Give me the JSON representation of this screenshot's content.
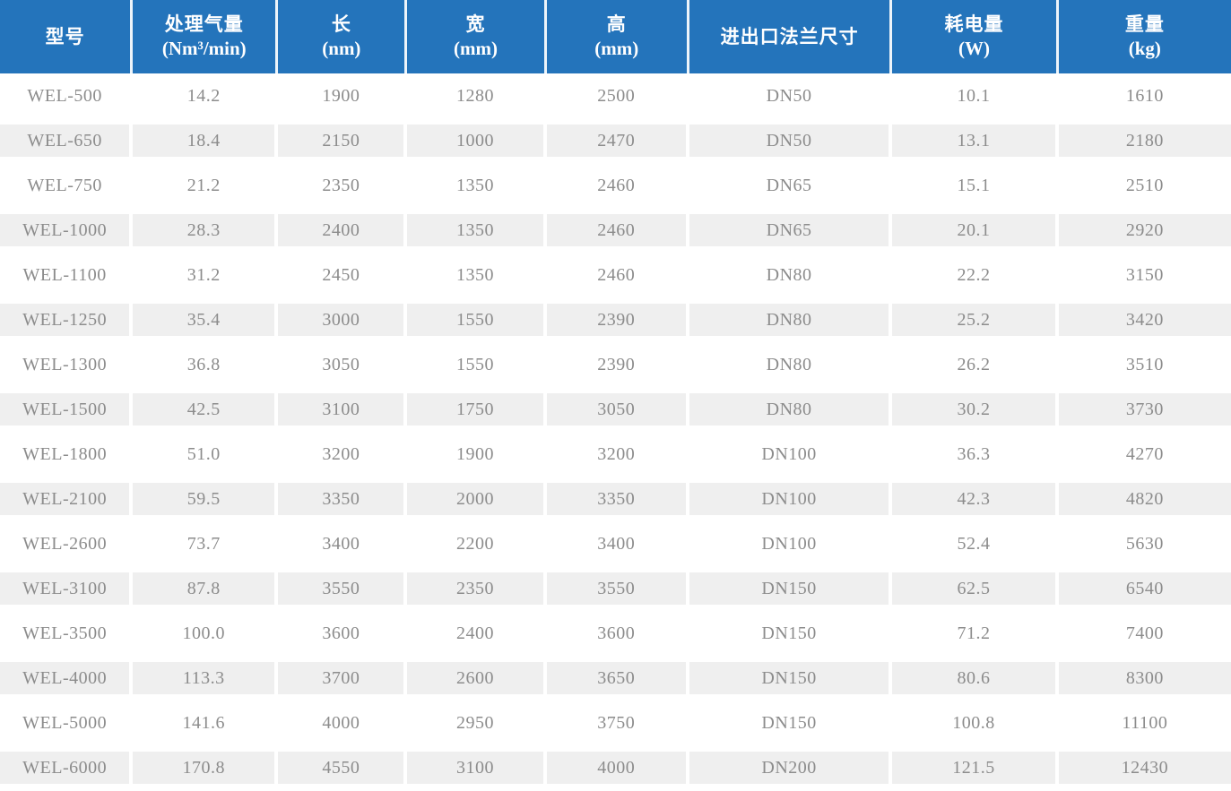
{
  "table": {
    "colors": {
      "header_bg": "#2474BB",
      "header_text": "#FFFFFF",
      "row_bg": "#FFFFFF",
      "row_alt_bg": "#EFEFEF",
      "body_text": "#8C8C8C"
    },
    "columns": [
      {
        "line1": "型号",
        "line2": ""
      },
      {
        "line1": "处理气量",
        "line2": "(Nm³/min)"
      },
      {
        "line1": "长",
        "line2": "(nm)"
      },
      {
        "line1": "宽",
        "line2": "(mm)"
      },
      {
        "line1": "高",
        "line2": "(mm)"
      },
      {
        "line1": "进出口法兰尺寸",
        "line2": ""
      },
      {
        "line1": "耗电量",
        "line2": "(W)"
      },
      {
        "line1": "重量",
        "line2": "(kg)"
      }
    ],
    "rows": [
      [
        "WEL-500",
        "14.2",
        "1900",
        "1280",
        "2500",
        "DN50",
        "10.1",
        "1610"
      ],
      [
        "WEL-650",
        "18.4",
        "2150",
        "1000",
        "2470",
        "DN50",
        "13.1",
        "2180"
      ],
      [
        "WEL-750",
        "21.2",
        "2350",
        "1350",
        "2460",
        "DN65",
        "15.1",
        "2510"
      ],
      [
        "WEL-1000",
        "28.3",
        "2400",
        "1350",
        "2460",
        "DN65",
        "20.1",
        "2920"
      ],
      [
        "WEL-1100",
        "31.2",
        "2450",
        "1350",
        "2460",
        "DN80",
        "22.2",
        "3150"
      ],
      [
        "WEL-1250",
        "35.4",
        "3000",
        "1550",
        "2390",
        "DN80",
        "25.2",
        "3420"
      ],
      [
        "WEL-1300",
        "36.8",
        "3050",
        "1550",
        "2390",
        "DN80",
        "26.2",
        "3510"
      ],
      [
        "WEL-1500",
        "42.5",
        "3100",
        "1750",
        "3050",
        "DN80",
        "30.2",
        "3730"
      ],
      [
        "WEL-1800",
        "51.0",
        "3200",
        "1900",
        "3200",
        "DN100",
        "36.3",
        "4270"
      ],
      [
        "WEL-2100",
        "59.5",
        "3350",
        "2000",
        "3350",
        "DN100",
        "42.3",
        "4820"
      ],
      [
        "WEL-2600",
        "73.7",
        "3400",
        "2200",
        "3400",
        "DN100",
        "52.4",
        "5630"
      ],
      [
        "WEL-3100",
        "87.8",
        "3550",
        "2350",
        "3550",
        "DN150",
        "62.5",
        "6540"
      ],
      [
        "WEL-3500",
        "100.0",
        "3600",
        "2400",
        "3600",
        "DN150",
        "71.2",
        "7400"
      ],
      [
        "WEL-4000",
        "113.3",
        "3700",
        "2600",
        "3650",
        "DN150",
        "80.6",
        "8300"
      ],
      [
        "WEL-5000",
        "141.6",
        "4000",
        "2950",
        "3750",
        "DN150",
        "100.8",
        "11100"
      ],
      [
        "WEL-6000",
        "170.8",
        "4550",
        "3100",
        "4000",
        "DN200",
        "121.5",
        "12430"
      ]
    ]
  }
}
